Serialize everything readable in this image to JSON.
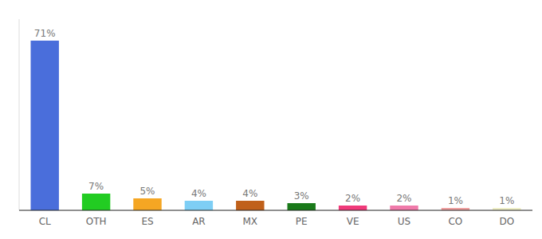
{
  "chart_data": {
    "type": "bar",
    "categories": [
      "CL",
      "OTH",
      "ES",
      "AR",
      "MX",
      "PE",
      "VE",
      "US",
      "CO",
      "DO"
    ],
    "values": [
      71,
      7,
      5,
      4,
      4,
      3,
      2,
      2,
      1,
      1
    ],
    "value_labels": [
      "71%",
      "7%",
      "5%",
      "4%",
      "4%",
      "3%",
      "2%",
      "2%",
      "1%",
      "1%"
    ],
    "colors": [
      "#4a6edb",
      "#22cc22",
      "#f5a623",
      "#7ecef5",
      "#c0601a",
      "#1a7a1a",
      "#f03a7a",
      "#f07aaa",
      "#f0a0a0",
      "#f0f0c8"
    ],
    "ylim": [
      0,
      80
    ],
    "data_labels": true,
    "tick_labels": "x"
  }
}
